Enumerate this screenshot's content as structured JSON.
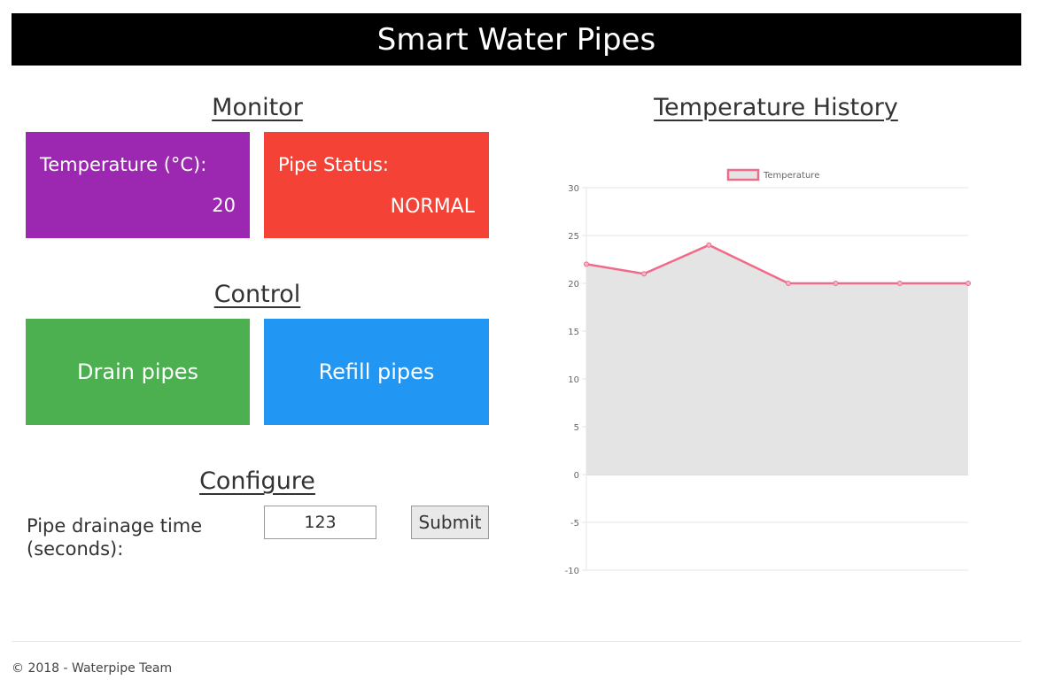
{
  "header": {
    "title": "Smart Water Pipes"
  },
  "monitor": {
    "title": "Monitor",
    "temperature_label": "Temperature (°C):",
    "temperature_value": "20",
    "status_label": "Pipe Status:",
    "status_value": "NORMAL"
  },
  "control": {
    "title": "Control",
    "drain_label": "Drain pipes",
    "refill_label": "Refill pipes"
  },
  "configure": {
    "title": "Configure",
    "drainage_label": "Pipe drainage time (seconds):",
    "drainage_value": "123",
    "submit_label": "Submit"
  },
  "history": {
    "title": "Temperature History"
  },
  "footer": {
    "text": "© 2018 - Waterpipe Team"
  },
  "colors": {
    "temperature_tile": "#9C27B0",
    "status_tile": "#F44336",
    "drain_button": "#4CAF50",
    "refill_button": "#2196F3",
    "line": "#F06A8A",
    "fill": "#E4E4E4"
  },
  "chart_data": {
    "type": "area",
    "legend": "top",
    "grid": true,
    "ylim": [
      -10,
      30
    ],
    "yticks": [
      30,
      25,
      20,
      15,
      10,
      5,
      0,
      -5,
      -10
    ],
    "series": [
      {
        "name": "Temperature",
        "values": [
          22,
          21,
          24,
          20,
          20,
          20,
          20
        ]
      }
    ]
  }
}
